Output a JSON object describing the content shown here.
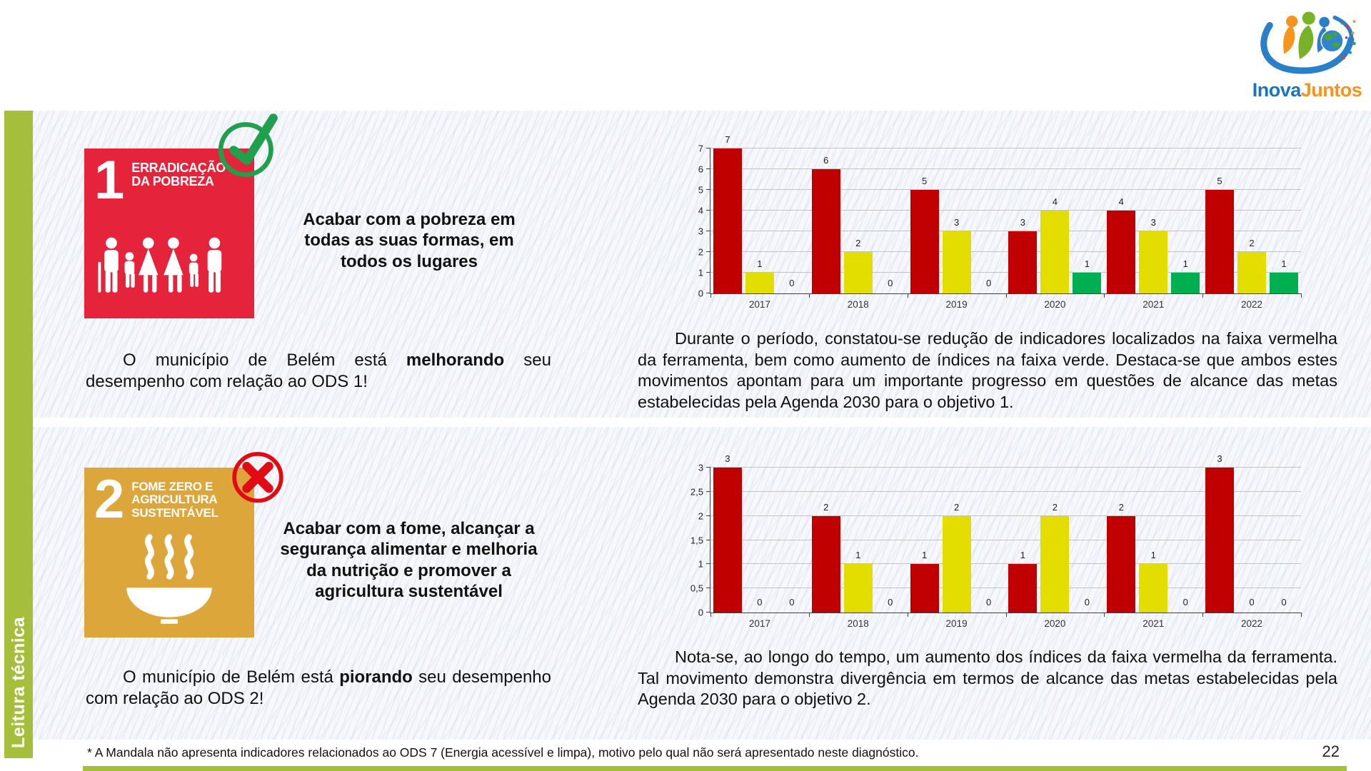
{
  "logo": {
    "text_primary": "Inova",
    "text_secondary": "Juntos"
  },
  "sidebar": {
    "label": "Leitura técnica",
    "color": "#a5bf3d"
  },
  "sections": [
    {
      "sdg_number": "1",
      "sdg_title_lines": [
        "ERRADICAÇÃO",
        "DA POBREZA"
      ],
      "sdg_color": "#e5243b",
      "badge": "check",
      "goal_text": "Acabar com a pobreza em todas as suas formas, em todos os lugares",
      "status": {
        "prefix": "O município de Belém está ",
        "highlight": "melhorando",
        "suffix": " seu desempenho com relação ao ODS 1!"
      },
      "analysis": "Durante o período, constatou-se redução de indicadores localizados na faixa vermelha da ferramenta, bem como aumento de índices na faixa verde. Destaca-se que ambos estes movimentos apontam para um importante progresso em questões de alcance das metas estabelecidas pela Agenda 2030 para o objetivo 1."
    },
    {
      "sdg_number": "2",
      "sdg_title_lines": [
        "FOME ZERO E",
        "AGRICULTURA",
        "SUSTENTÁVEL"
      ],
      "sdg_color": "#dda63a",
      "badge": "cross",
      "goal_text": "Acabar com a fome, alcançar a segurança alimentar e melhoria da nutrição e promover a agricultura sustentável",
      "status": {
        "prefix": "O município de Belém está ",
        "highlight": "piorando",
        "suffix": " seu desempenho com relação ao ODS 2!"
      },
      "analysis": "Nota-se, ao longo do tempo, um aumento dos índices da faixa vermelha da ferramenta. Tal movimento demonstra divergência em termos de alcance das metas estabelecidas pela Agenda 2030 para o objetivo 2."
    }
  ],
  "chart_data": [
    {
      "type": "bar",
      "title": "",
      "categories": [
        "2017",
        "2018",
        "2019",
        "2020",
        "2021",
        "2022"
      ],
      "series": [
        {
          "name": "faixa vermelha",
          "color": "#c00000",
          "values": [
            7,
            6,
            5,
            3,
            4,
            5
          ]
        },
        {
          "name": "faixa amarela",
          "color": "#e3de00",
          "values": [
            1,
            2,
            3,
            4,
            3,
            2
          ]
        },
        {
          "name": "faixa verde",
          "color": "#00b050",
          "values": [
            0,
            0,
            0,
            1,
            1,
            1
          ]
        }
      ],
      "ylim": [
        0,
        7
      ],
      "ytick_labels": [
        "0",
        "1",
        "2",
        "3",
        "4",
        "5",
        "6",
        "7"
      ],
      "grid": true,
      "legend": "none"
    },
    {
      "type": "bar",
      "title": "",
      "categories": [
        "2017",
        "2018",
        "2019",
        "2020",
        "2021",
        "2022"
      ],
      "series": [
        {
          "name": "faixa vermelha",
          "color": "#c00000",
          "values": [
            3,
            2,
            1,
            1,
            2,
            3
          ]
        },
        {
          "name": "faixa amarela",
          "color": "#e3de00",
          "values": [
            0,
            1,
            2,
            2,
            1,
            0
          ]
        },
        {
          "name": "faixa verde",
          "color": "#00b050",
          "values": [
            0,
            0,
            0,
            0,
            0,
            0
          ]
        }
      ],
      "ylim": [
        0,
        3
      ],
      "ytick_labels": [
        "0",
        "0,5",
        "1",
        "1,5",
        "2",
        "2,5",
        "3"
      ],
      "grid": true,
      "legend": "none"
    }
  ],
  "footer": {
    "note": "* A Mandala não apresenta indicadores relacionados ao ODS 7 (Energia acessível e limpa), motivo pelo qual não será apresentado neste diagnóstico.",
    "page": "22"
  }
}
